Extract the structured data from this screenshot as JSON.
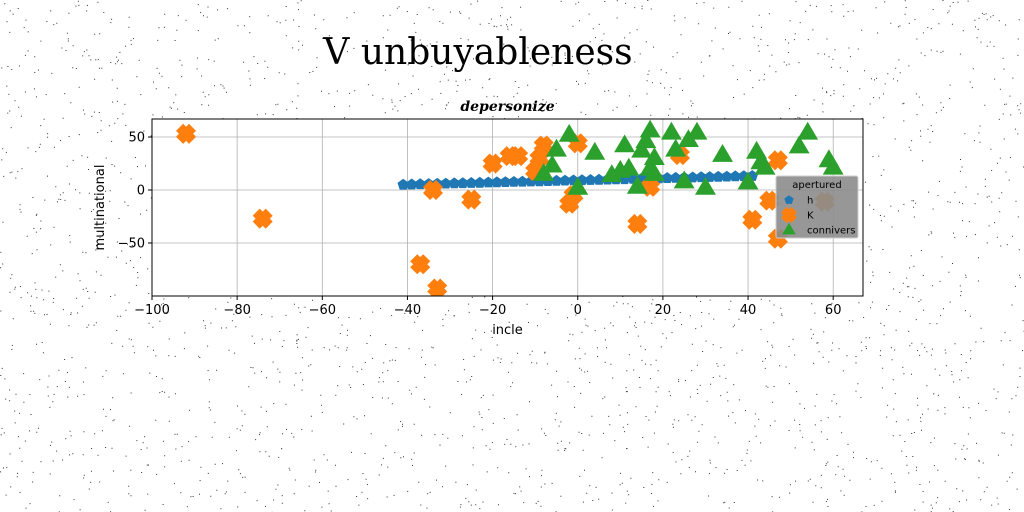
{
  "figure": {
    "suptitle": "V unbuyableness"
  },
  "chart_data": {
    "type": "scatter",
    "title": "depersonize",
    "xlabel": "incle",
    "ylabel": "multinational",
    "xlim": [
      -100,
      67
    ],
    "ylim": [
      -100,
      67
    ],
    "xticks": [
      -100,
      -80,
      -60,
      -40,
      -20,
      0,
      20,
      40,
      60
    ],
    "yticks": [
      -50,
      0,
      50
    ],
    "grid": true,
    "legend": {
      "title": "apertured",
      "position": "right"
    },
    "series": [
      {
        "name": "h",
        "marker": "pentagon",
        "color": "#1f77b4",
        "x": [
          -41,
          -39,
          -37,
          -35,
          -33,
          -31,
          -29,
          -27,
          -25,
          -23,
          -21,
          -19,
          -17,
          -15,
          -13,
          -11,
          -9,
          -7,
          -5,
          -3,
          -1,
          1,
          3,
          5,
          7,
          9,
          11,
          13,
          15,
          17,
          19,
          21,
          23,
          25,
          27,
          29,
          31,
          33,
          35,
          37,
          39,
          41
        ],
        "y": [
          5.0,
          5.2,
          5.4,
          5.6,
          5.8,
          6.0,
          6.2,
          6.4,
          6.6,
          6.8,
          7.0,
          7.2,
          7.4,
          7.6,
          7.8,
          8.0,
          8.2,
          8.4,
          8.6,
          8.8,
          9.0,
          9.2,
          9.4,
          9.6,
          9.8,
          10.0,
          10.2,
          10.4,
          10.6,
          10.8,
          11.0,
          11.2,
          11.4,
          11.6,
          11.8,
          12.0,
          12.2,
          12.4,
          12.6,
          12.8,
          13.0,
          13.2
        ]
      },
      {
        "name": "K",
        "marker": "x-filled",
        "color": "#ff7f0e",
        "x": [
          -92,
          -74,
          -37,
          -34,
          -33,
          -25,
          -20,
          -16,
          -14,
          -10,
          -9,
          -8,
          -2,
          -1,
          0,
          14,
          17,
          24,
          41,
          45,
          47,
          47,
          58
        ],
        "y": [
          53,
          -27,
          -70,
          0,
          -93,
          -9,
          25,
          32,
          32,
          18,
          30,
          42,
          -13,
          -5,
          44,
          -32,
          3,
          33,
          -28,
          -10,
          -46,
          28,
          -11
        ]
      },
      {
        "name": "connivers",
        "marker": "triangle",
        "color": "#2ca02c",
        "x": [
          -8,
          -6,
          -5,
          -2,
          0,
          4,
          8,
          10,
          11,
          12,
          14,
          15,
          16,
          17,
          17,
          18,
          18,
          22,
          23,
          25,
          26,
          28,
          30,
          34,
          40,
          42,
          43,
          44,
          52,
          54,
          59,
          60
        ],
        "y": [
          15,
          23,
          38,
          52,
          2,
          35,
          14,
          18,
          42,
          20,
          3,
          37,
          46,
          56,
          20,
          30,
          15,
          54,
          38,
          8,
          47,
          54,
          2,
          33,
          7,
          36,
          26,
          21,
          41,
          54,
          28,
          21
        ]
      }
    ]
  }
}
